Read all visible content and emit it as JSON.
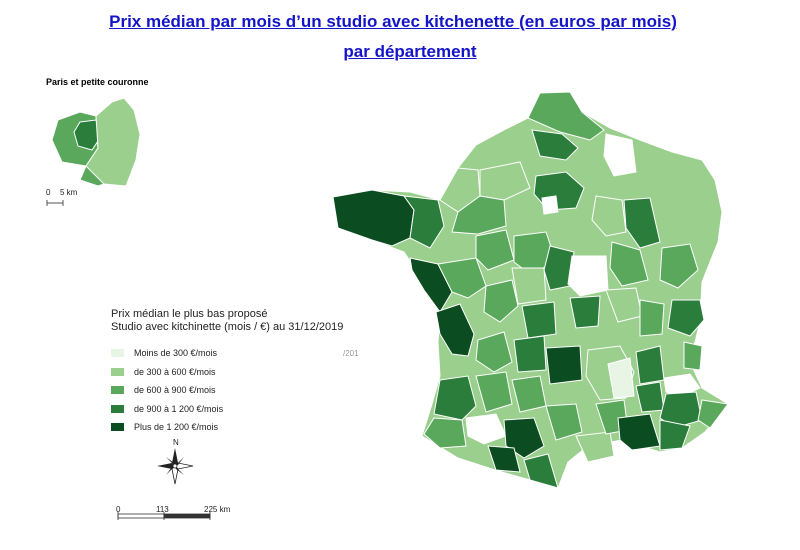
{
  "title_line1": "Prix médian par mois d’un studio avec kitchenette (en euros par mois)",
  "title_line2": "par département",
  "inset": {
    "title": "Paris et petite couronne",
    "scale_0": "0",
    "scale_5": "5 km"
  },
  "legend": {
    "title_line1": "Prix médian le plus bas proposé",
    "title_line2": "Studio avec kitchinette (mois / €) au 31/12/2019",
    "items": [
      {
        "label": "Moins de 300 €/mois",
        "color": "#e8f5e4"
      },
      {
        "label": "de 300 à 600 €/mois",
        "color": "#9bcf8e"
      },
      {
        "label": "de 600 à 900 €/mois",
        "color": "#5aa85c"
      },
      {
        "label": "de 900 à 1 200 €/mois",
        "color": "#2a7d3b"
      },
      {
        "label": "Plus de 1 200 €/mois",
        "color": "#0b4d20"
      }
    ]
  },
  "north": "N",
  "scale": {
    "s0": "0",
    "s1": "113",
    "s2": "225 km"
  },
  "stray_text": "/201"
}
